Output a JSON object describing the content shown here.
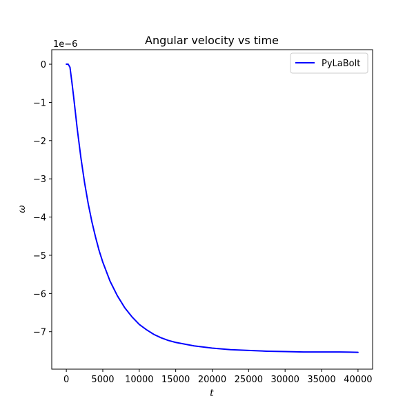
{
  "chart_data": {
    "type": "line",
    "title": "Angular velocity vs time",
    "xlabel": "t",
    "ylabel": "ω",
    "y_offset_label": "1e−6",
    "y_scale_factor": 1e-06,
    "xlim": [
      -2000,
      42000
    ],
    "ylim": [
      -7.98e-06,
      3.8e-07
    ],
    "x_ticks": [
      0,
      5000,
      10000,
      15000,
      20000,
      25000,
      30000,
      35000,
      40000
    ],
    "x_tick_labels": [
      "0",
      "5000",
      "10000",
      "15000",
      "20000",
      "25000",
      "30000",
      "35000",
      "40000"
    ],
    "y_ticks": [
      0,
      -1e-06,
      -2e-06,
      -3e-06,
      -4e-06,
      -5e-06,
      -6e-06,
      -7e-06
    ],
    "y_tick_labels": [
      "0",
      "−1",
      "−2",
      "−3",
      "−4",
      "−5",
      "−6",
      "−7"
    ],
    "grid": false,
    "legend_position": "top-right",
    "series": [
      {
        "name": "PyLaBolt",
        "color": "#0000ff",
        "x": [
          0,
          250,
          500,
          750,
          1000,
          1500,
          2000,
          2500,
          3000,
          3500,
          4000,
          4500,
          5000,
          6000,
          7000,
          8000,
          9000,
          10000,
          11000,
          12000,
          13000,
          14000,
          15000,
          17500,
          20000,
          22500,
          25000,
          27500,
          30000,
          32500,
          35000,
          37500,
          40000
        ],
        "y": [
          0,
          0,
          -8e-08,
          -4.5e-07,
          -8.5e-07,
          -1.7e-06,
          -2.45e-06,
          -3.1e-06,
          -3.65e-06,
          -4.12e-06,
          -4.52e-06,
          -4.88e-06,
          -5.18e-06,
          -5.68e-06,
          -6.06e-06,
          -6.37e-06,
          -6.61e-06,
          -6.81e-06,
          -6.95e-06,
          -7.07e-06,
          -7.16e-06,
          -7.23e-06,
          -7.28e-06,
          -7.37e-06,
          -7.43e-06,
          -7.47e-06,
          -7.49e-06,
          -7.51e-06,
          -7.52e-06,
          -7.53e-06,
          -7.53e-06,
          -7.53e-06,
          -7.54e-06
        ]
      }
    ]
  }
}
